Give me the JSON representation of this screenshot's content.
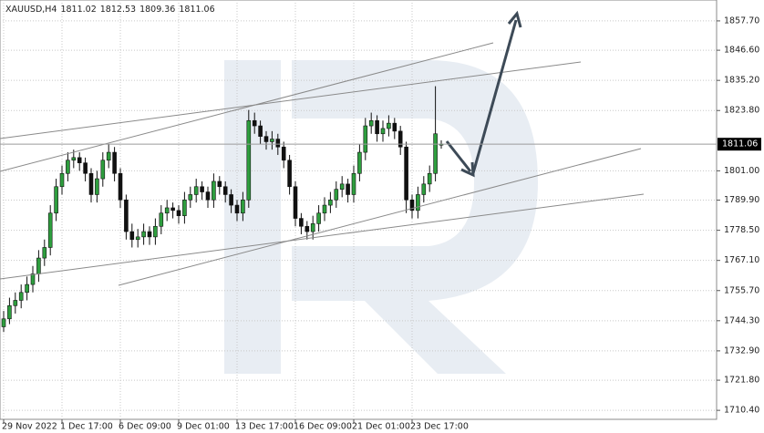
{
  "chart_data": {
    "type": "candlestick",
    "symbol": "XAUUSD,H4",
    "ylim": [
      1707,
      1865.6
    ],
    "yticks": [
      {
        "value": 1857.7,
        "label": "1857.70"
      },
      {
        "value": 1846.6,
        "label": "1846.60"
      },
      {
        "value": 1835.2,
        "label": "1835.20"
      },
      {
        "value": 1823.8,
        "label": "1823.80"
      },
      {
        "value": 1801,
        "label": "1801.00"
      },
      {
        "value": 1789.9,
        "label": "1789.90"
      },
      {
        "value": 1778.5,
        "label": "1778.50"
      },
      {
        "value": 1767.1,
        "label": "1767.10"
      },
      {
        "value": 1755.7,
        "label": "1755.70"
      },
      {
        "value": 1744.3,
        "label": "1744.30"
      },
      {
        "value": 1732.9,
        "label": "1732.90"
      },
      {
        "value": 1721.8,
        "label": "1721.80"
      },
      {
        "value": 1710.4,
        "label": "1710.40"
      }
    ],
    "x_labels": [
      "29 Nov 2022",
      "1 Dec 17:00",
      "6 Dec 09:00",
      "9 Dec 01:00",
      "13 Dec 17:00",
      "16 Dec 09:00",
      "21 Dec 01:00",
      "23 Dec 17:00"
    ],
    "up_color": "#2e9e3e",
    "down_color": "#111111",
    "grid": true,
    "candles": [
      [
        1742,
        1748,
        1740,
        1745
      ],
      [
        1745,
        1753,
        1743,
        1750
      ],
      [
        1750,
        1755,
        1747,
        1752
      ],
      [
        1752,
        1758,
        1749,
        1755
      ],
      [
        1755,
        1761,
        1752,
        1758
      ],
      [
        1758,
        1765,
        1755,
        1762
      ],
      [
        1762,
        1771,
        1759,
        1768
      ],
      [
        1768,
        1775,
        1765,
        1772
      ],
      [
        1772,
        1788,
        1769,
        1785
      ],
      [
        1785,
        1798,
        1782,
        1795
      ],
      [
        1795,
        1803,
        1792,
        1800
      ],
      [
        1800,
        1808,
        1797,
        1805
      ],
      [
        1805,
        1809,
        1802,
        1806
      ],
      [
        1806,
        1808,
        1801,
        1804
      ],
      [
        1804,
        1806,
        1797,
        1800
      ],
      [
        1800,
        1802,
        1789,
        1792
      ],
      [
        1792,
        1801,
        1789,
        1798
      ],
      [
        1798,
        1808,
        1795,
        1805
      ],
      [
        1805,
        1811,
        1802,
        1808
      ],
      [
        1808,
        1810,
        1797,
        1800
      ],
      [
        1800,
        1802,
        1787,
        1790
      ],
      [
        1790,
        1792,
        1775,
        1778
      ],
      [
        1778,
        1781,
        1772,
        1775
      ],
      [
        1775,
        1779,
        1772,
        1776
      ],
      [
        1776,
        1781,
        1773,
        1778
      ],
      [
        1778,
        1780,
        1773,
        1776
      ],
      [
        1776,
        1783,
        1773,
        1780
      ],
      [
        1780,
        1788,
        1777,
        1785
      ],
      [
        1785,
        1790,
        1782,
        1787
      ],
      [
        1787,
        1789,
        1783,
        1786
      ],
      [
        1786,
        1788,
        1781,
        1784
      ],
      [
        1784,
        1793,
        1781,
        1790
      ],
      [
        1790,
        1795,
        1787,
        1792
      ],
      [
        1792,
        1798,
        1789,
        1795
      ],
      [
        1795,
        1797,
        1790,
        1793
      ],
      [
        1793,
        1795,
        1787,
        1790
      ],
      [
        1790,
        1800,
        1787,
        1797
      ],
      [
        1797,
        1799,
        1792,
        1795
      ],
      [
        1795,
        1797,
        1789,
        1792
      ],
      [
        1792,
        1794,
        1785,
        1788
      ],
      [
        1788,
        1790,
        1782,
        1785
      ],
      [
        1785,
        1793,
        1782,
        1790
      ],
      [
        1790,
        1824,
        1787,
        1820
      ],
      [
        1820,
        1823,
        1815,
        1818
      ],
      [
        1818,
        1820,
        1811,
        1814
      ],
      [
        1814,
        1816,
        1809,
        1812
      ],
      [
        1812,
        1816,
        1809,
        1813
      ],
      [
        1813,
        1815,
        1807,
        1810
      ],
      [
        1810,
        1812,
        1802,
        1805
      ],
      [
        1805,
        1807,
        1792,
        1795
      ],
      [
        1795,
        1797,
        1780,
        1783
      ],
      [
        1783,
        1785,
        1777,
        1780
      ],
      [
        1780,
        1782,
        1775,
        1778
      ],
      [
        1778,
        1784,
        1775,
        1781
      ],
      [
        1781,
        1788,
        1778,
        1785
      ],
      [
        1785,
        1791,
        1782,
        1788
      ],
      [
        1788,
        1793,
        1785,
        1790
      ],
      [
        1790,
        1797,
        1787,
        1794
      ],
      [
        1794,
        1799,
        1791,
        1796
      ],
      [
        1796,
        1798,
        1789,
        1792
      ],
      [
        1792,
        1803,
        1789,
        1800
      ],
      [
        1800,
        1811,
        1797,
        1808
      ],
      [
        1808,
        1821,
        1805,
        1818
      ],
      [
        1818,
        1823,
        1815,
        1820
      ],
      [
        1820,
        1822,
        1812,
        1815
      ],
      [
        1815,
        1820,
        1812,
        1817
      ],
      [
        1817,
        1822,
        1814,
        1819
      ],
      [
        1819,
        1821,
        1813,
        1816
      ],
      [
        1816,
        1818,
        1807,
        1810
      ],
      [
        1810,
        1812,
        1785,
        1790
      ],
      [
        1790,
        1792,
        1783,
        1786
      ],
      [
        1786,
        1795,
        1783,
        1792
      ],
      [
        1792,
        1799,
        1789,
        1796
      ],
      [
        1796,
        1803,
        1793,
        1800
      ],
      [
        1800,
        1833,
        1797,
        1815
      ],
      [
        1811.02,
        1812.53,
        1809.36,
        1811.06
      ]
    ]
  }
}
